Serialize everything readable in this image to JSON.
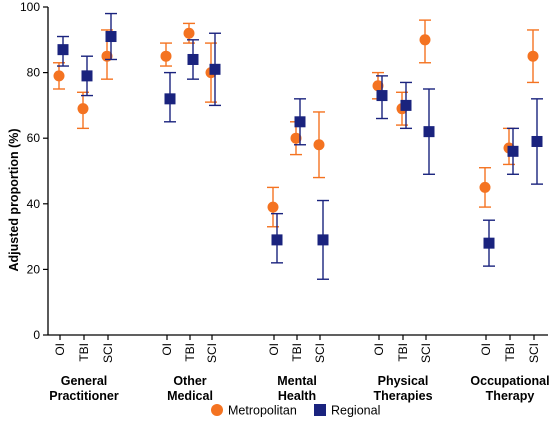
{
  "chart_data": {
    "type": "scatter",
    "title": "",
    "ylabel": "Adjusted proportion (%)",
    "xlabel": "",
    "ylim": [
      0,
      100
    ],
    "yticks": [
      0,
      20,
      40,
      60,
      80,
      100
    ],
    "groups": [
      {
        "label_lines": [
          "General",
          "Practitioner"
        ],
        "categories": [
          "OI",
          "TBI",
          "SCI"
        ]
      },
      {
        "label_lines": [
          "Other",
          "Medical"
        ],
        "categories": [
          "OI",
          "TBI",
          "SCI"
        ]
      },
      {
        "label_lines": [
          "Mental",
          "Health"
        ],
        "categories": [
          "OI",
          "TBI",
          "SCI"
        ]
      },
      {
        "label_lines": [
          "Physical",
          "Therapies"
        ],
        "categories": [
          "OI",
          "TBI",
          "SCI"
        ]
      },
      {
        "label_lines": [
          "Occupational",
          "Therapy"
        ],
        "categories": [
          "OI",
          "TBI",
          "SCI"
        ]
      }
    ],
    "series": [
      {
        "name": "Metropolitan",
        "color": "#f47321",
        "marker": "circle",
        "points": [
          {
            "group": 0,
            "cat": 0,
            "y": 79,
            "lo": 75,
            "hi": 83
          },
          {
            "group": 0,
            "cat": 1,
            "y": 69,
            "lo": 63,
            "hi": 74
          },
          {
            "group": 0,
            "cat": 2,
            "y": 85,
            "lo": 78,
            "hi": 93
          },
          {
            "group": 1,
            "cat": 0,
            "y": 85,
            "lo": 82,
            "hi": 89
          },
          {
            "group": 1,
            "cat": 1,
            "y": 92,
            "lo": 89,
            "hi": 95
          },
          {
            "group": 1,
            "cat": 2,
            "y": 80,
            "lo": 71,
            "hi": 89
          },
          {
            "group": 2,
            "cat": 0,
            "y": 39,
            "lo": 33,
            "hi": 45
          },
          {
            "group": 2,
            "cat": 1,
            "y": 60,
            "lo": 55,
            "hi": 65
          },
          {
            "group": 2,
            "cat": 2,
            "y": 58,
            "lo": 48,
            "hi": 68
          },
          {
            "group": 3,
            "cat": 0,
            "y": 76,
            "lo": 72,
            "hi": 80
          },
          {
            "group": 3,
            "cat": 1,
            "y": 69,
            "lo": 64,
            "hi": 74
          },
          {
            "group": 3,
            "cat": 2,
            "y": 90,
            "lo": 83,
            "hi": 96
          },
          {
            "group": 4,
            "cat": 0,
            "y": 45,
            "lo": 39,
            "hi": 51
          },
          {
            "group": 4,
            "cat": 1,
            "y": 57,
            "lo": 52,
            "hi": 63
          },
          {
            "group": 4,
            "cat": 2,
            "y": 85,
            "lo": 77,
            "hi": 93
          }
        ]
      },
      {
        "name": "Regional",
        "color": "#1a237e",
        "marker": "square",
        "points": [
          {
            "group": 0,
            "cat": 0,
            "y": 87,
            "lo": 82,
            "hi": 91
          },
          {
            "group": 0,
            "cat": 1,
            "y": 79,
            "lo": 73,
            "hi": 85
          },
          {
            "group": 0,
            "cat": 2,
            "y": 91,
            "lo": 84,
            "hi": 98
          },
          {
            "group": 1,
            "cat": 0,
            "y": 72,
            "lo": 65,
            "hi": 80
          },
          {
            "group": 1,
            "cat": 1,
            "y": 84,
            "lo": 78,
            "hi": 90
          },
          {
            "group": 1,
            "cat": 2,
            "y": 81,
            "lo": 70,
            "hi": 92
          },
          {
            "group": 2,
            "cat": 0,
            "y": 29,
            "lo": 22,
            "hi": 37
          },
          {
            "group": 2,
            "cat": 1,
            "y": 65,
            "lo": 58,
            "hi": 72
          },
          {
            "group": 2,
            "cat": 2,
            "y": 29,
            "lo": 17,
            "hi": 41
          },
          {
            "group": 3,
            "cat": 0,
            "y": 73,
            "lo": 66,
            "hi": 79
          },
          {
            "group": 3,
            "cat": 1,
            "y": 70,
            "lo": 63,
            "hi": 77
          },
          {
            "group": 3,
            "cat": 2,
            "y": 62,
            "lo": 49,
            "hi": 75
          },
          {
            "group": 4,
            "cat": 0,
            "y": 28,
            "lo": 21,
            "hi": 35
          },
          {
            "group": 4,
            "cat": 1,
            "y": 56,
            "lo": 49,
            "hi": 63
          },
          {
            "group": 4,
            "cat": 2,
            "y": 59,
            "lo": 46,
            "hi": 72
          }
        ]
      }
    ],
    "legend": {
      "placement": "bottom",
      "entries": [
        "Metropolitan",
        "Regional"
      ]
    }
  }
}
